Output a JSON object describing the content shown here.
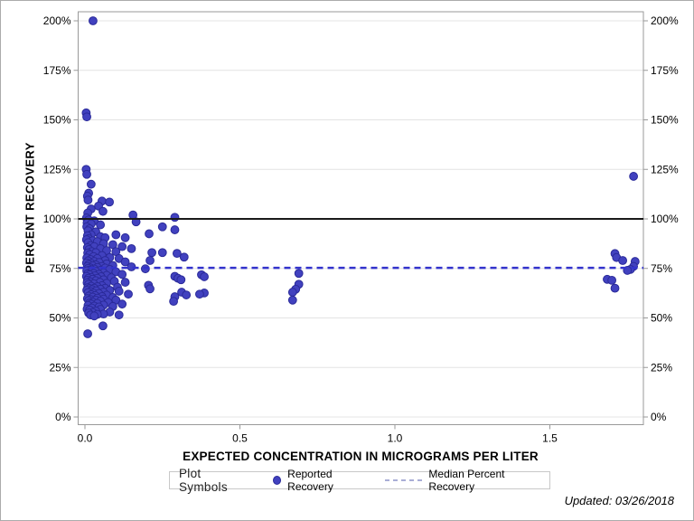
{
  "chart_data": {
    "type": "scatter",
    "xlabel": "EXPECTED CONCENTRATION IN MICROGRAMS PER LITER",
    "ylabel": "PERCENT RECOVERY",
    "x_ticks": [
      0.0,
      0.5,
      1.0,
      1.5
    ],
    "x_tick_labels": [
      "0.0",
      "0.5",
      "1.0",
      "1.5"
    ],
    "y_ticks": [
      0,
      25,
      50,
      75,
      100,
      125,
      150,
      175,
      200
    ],
    "y_tick_labels": [
      "0%",
      "25%",
      "50%",
      "75%",
      "100%",
      "125%",
      "150%",
      "175%",
      "200%"
    ],
    "xlim": [
      -0.02,
      1.8
    ],
    "ylim": [
      -4,
      204
    ],
    "grid": "horizontal",
    "target_line_percent": 100,
    "median_percent_recovery": 75.3,
    "legend": {
      "title": "Plot Symbols",
      "items": [
        {
          "label": "Reported Recovery",
          "marker": "dot"
        },
        {
          "label": "Median Percent Recovery",
          "marker": "dashed-line"
        }
      ]
    },
    "colors": {
      "marker_fill": "#4141bf",
      "marker_stroke": "#2a2a99",
      "median_line": "#3333cc",
      "target_line": "#1a1a1a",
      "legend_dash": "#a9aed6",
      "grid": "#e4e4e4",
      "frame": "#999999",
      "tick_text": "#000000"
    },
    "series": [
      {
        "name": "Reported Recovery",
        "points": [
          [
            0.026,
            200
          ],
          [
            0.004,
            153.5
          ],
          [
            0.006,
            151.5
          ],
          [
            0.004,
            125
          ],
          [
            0.006,
            122.5
          ],
          [
            0.02,
            117.5
          ],
          [
            0.012,
            113
          ],
          [
            0.008,
            111.5
          ],
          [
            0.01,
            109.5
          ],
          [
            0.055,
            109
          ],
          [
            0.079,
            108.5
          ],
          [
            0.044,
            106.5
          ],
          [
            0.02,
            105
          ],
          [
            0.058,
            103.8
          ],
          [
            0.009,
            103
          ],
          [
            0.155,
            102
          ],
          [
            0.29,
            100.8
          ],
          [
            0.005,
            100.5
          ],
          [
            0.012,
            99.5
          ],
          [
            0.03,
            99
          ],
          [
            0.165,
            98.5
          ],
          [
            0.007,
            98
          ],
          [
            0.02,
            97.5
          ],
          [
            0.05,
            97
          ],
          [
            0.006,
            96
          ],
          [
            0.25,
            96
          ],
          [
            0.015,
            95
          ],
          [
            0.29,
            94.5
          ],
          [
            0.01,
            94
          ],
          [
            0.035,
            93.5
          ],
          [
            0.207,
            92.5
          ],
          [
            0.02,
            92
          ],
          [
            0.1,
            92
          ],
          [
            0.008,
            91.5
          ],
          [
            0.05,
            91
          ],
          [
            0.065,
            90.5
          ],
          [
            0.13,
            90.5
          ],
          [
            0.012,
            90
          ],
          [
            0.005,
            89.5
          ],
          [
            0.025,
            89
          ],
          [
            0.04,
            88.5
          ],
          [
            0.01,
            88
          ],
          [
            0.06,
            87.5
          ],
          [
            0.09,
            87
          ],
          [
            0.018,
            86.5
          ],
          [
            0.03,
            86
          ],
          [
            0.12,
            86
          ],
          [
            0.008,
            85.5
          ],
          [
            0.05,
            85
          ],
          [
            0.15,
            85
          ],
          [
            0.013,
            84.5
          ],
          [
            0.07,
            84
          ],
          [
            0.022,
            83.5
          ],
          [
            0.1,
            83.5
          ],
          [
            0.216,
            83
          ],
          [
            0.25,
            83
          ],
          [
            0.035,
            83
          ],
          [
            0.009,
            82.8
          ],
          [
            0.297,
            82.6
          ],
          [
            0.015,
            82
          ],
          [
            0.055,
            81.5
          ],
          [
            0.028,
            81
          ],
          [
            0.32,
            80.7
          ],
          [
            0.08,
            80.5
          ],
          [
            0.006,
            80.3
          ],
          [
            0.04,
            80
          ],
          [
            0.11,
            80
          ],
          [
            0.018,
            79.5
          ],
          [
            0.065,
            79
          ],
          [
            0.21,
            79
          ],
          [
            0.01,
            78.8
          ],
          [
            0.03,
            78.5
          ],
          [
            0.13,
            78.3
          ],
          [
            0.046,
            78
          ],
          [
            0.005,
            77.8
          ],
          [
            0.02,
            77.5
          ],
          [
            0.07,
            77.3
          ],
          [
            0.012,
            77
          ],
          [
            0.035,
            76.8
          ],
          [
            0.09,
            76.5
          ],
          [
            0.025,
            76.3
          ],
          [
            0.055,
            76
          ],
          [
            0.008,
            76
          ],
          [
            0.15,
            75.8
          ],
          [
            0.04,
            75.5
          ],
          [
            0.017,
            75.3
          ],
          [
            0.065,
            75.2
          ],
          [
            0.01,
            75
          ],
          [
            0.195,
            74.8
          ],
          [
            0.03,
            74.7
          ],
          [
            0.08,
            74.5
          ],
          [
            0.022,
            74.3
          ],
          [
            0.05,
            74
          ],
          [
            0.012,
            74
          ],
          [
            0.006,
            73.8
          ],
          [
            0.035,
            73.5
          ],
          [
            0.1,
            73.3
          ],
          [
            0.018,
            73
          ],
          [
            0.06,
            72.8
          ],
          [
            0.69,
            72.5
          ],
          [
            0.028,
            72.5
          ],
          [
            0.009,
            72.3
          ],
          [
            0.045,
            72
          ],
          [
            0.12,
            72
          ],
          [
            0.376,
            71.8
          ],
          [
            0.015,
            71.8
          ],
          [
            0.07,
            71.5
          ],
          [
            0.032,
            71.3
          ],
          [
            0.29,
            71
          ],
          [
            0.005,
            71
          ],
          [
            0.052,
            70.8
          ],
          [
            0.385,
            70.8
          ],
          [
            0.02,
            70.5
          ],
          [
            0.085,
            70.3
          ],
          [
            0.011,
            70
          ],
          [
            0.04,
            70
          ],
          [
            0.3,
            70
          ],
          [
            0.025,
            69.5
          ],
          [
            1.685,
            69.5
          ],
          [
            0.06,
            69.3
          ],
          [
            0.31,
            69.3
          ],
          [
            0.008,
            69
          ],
          [
            1.7,
            69
          ],
          [
            0.035,
            68.8
          ],
          [
            0.095,
            68.5
          ],
          [
            0.016,
            68.3
          ],
          [
            0.048,
            68
          ],
          [
            0.13,
            68
          ],
          [
            0.007,
            67.8
          ],
          [
            0.07,
            67.5
          ],
          [
            0.028,
            67.3
          ],
          [
            0.012,
            67
          ],
          [
            0.69,
            67
          ],
          [
            0.205,
            66.5
          ],
          [
            0.055,
            66.3
          ],
          [
            0.02,
            66
          ],
          [
            0.04,
            65.8
          ],
          [
            0.105,
            65.5
          ],
          [
            0.009,
            65.3
          ],
          [
            0.03,
            65
          ],
          [
            0.065,
            65
          ],
          [
            1.71,
            65
          ],
          [
            0.014,
            64.8
          ],
          [
            0.21,
            64.7
          ],
          [
            0.05,
            64.5
          ],
          [
            0.68,
            64.5
          ],
          [
            0.023,
            64.3
          ],
          [
            0.08,
            64
          ],
          [
            0.006,
            64
          ],
          [
            0.036,
            63.7
          ],
          [
            0.11,
            63.5
          ],
          [
            0.018,
            63.3
          ],
          [
            0.06,
            63
          ],
          [
            0.67,
            63
          ],
          [
            0.312,
            63
          ],
          [
            0.01,
            62.8
          ],
          [
            0.385,
            62.6
          ],
          [
            0.028,
            62.5
          ],
          [
            0.045,
            62.3
          ],
          [
            0.14,
            62
          ],
          [
            0.37,
            62
          ],
          [
            0.02,
            61.8
          ],
          [
            0.327,
            61.6
          ],
          [
            0.07,
            61.5
          ],
          [
            0.033,
            61.3
          ],
          [
            0.012,
            61
          ],
          [
            0.055,
            60.8
          ],
          [
            0.29,
            60.7
          ],
          [
            0.025,
            60.5
          ],
          [
            0.09,
            60.3
          ],
          [
            0.04,
            60
          ],
          [
            0.008,
            59.8
          ],
          [
            0.06,
            59.5
          ],
          [
            0.018,
            59.3
          ],
          [
            0.035,
            59
          ],
          [
            0.1,
            59
          ],
          [
            0.67,
            59
          ],
          [
            0.012,
            58.8
          ],
          [
            0.05,
            58.5
          ],
          [
            0.286,
            58.4
          ],
          [
            0.025,
            58
          ],
          [
            0.075,
            57.8
          ],
          [
            0.015,
            57.5
          ],
          [
            0.04,
            57.3
          ],
          [
            0.12,
            57
          ],
          [
            0.02,
            57
          ],
          [
            0.06,
            56.5
          ],
          [
            0.01,
            56.3
          ],
          [
            0.03,
            56
          ],
          [
            0.09,
            55.8
          ],
          [
            0.045,
            55.5
          ],
          [
            0.022,
            55
          ],
          [
            0.007,
            54.5
          ],
          [
            0.05,
            54.3
          ],
          [
            0.015,
            54
          ],
          [
            0.035,
            53.5
          ],
          [
            0.08,
            53
          ],
          [
            0.025,
            52.8
          ],
          [
            0.012,
            52.5
          ],
          [
            0.06,
            52
          ],
          [
            0.04,
            51.8
          ],
          [
            0.018,
            51.5
          ],
          [
            0.11,
            51.5
          ],
          [
            0.03,
            51
          ],
          [
            0.058,
            46
          ],
          [
            0.009,
            42
          ],
          [
            1.77,
            121.5
          ],
          [
            1.71,
            82.5
          ],
          [
            1.715,
            80.5
          ],
          [
            1.735,
            79
          ],
          [
            1.775,
            78.5
          ],
          [
            1.77,
            76
          ],
          [
            1.76,
            74.5
          ],
          [
            1.75,
            74
          ]
        ]
      }
    ]
  },
  "footer": {
    "updated": "Updated: 03/26/2018"
  }
}
